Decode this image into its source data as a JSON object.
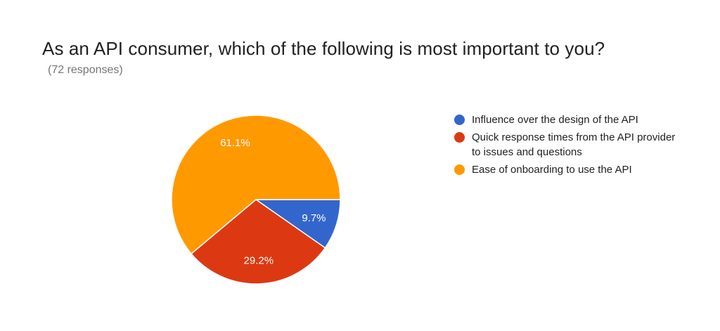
{
  "header": {
    "title": "As an API consumer, which of the following is most important to you?",
    "responses": "(72 responses)"
  },
  "chart_data": {
    "type": "pie",
    "slices": [
      {
        "label": "Influence over the design of the API",
        "value": 9.7,
        "display": "9.7%",
        "color": "#3366cc"
      },
      {
        "label": "Quick response times from the API provider to issues and questions",
        "value": 29.2,
        "display": "29.2%",
        "color": "#dc3912"
      },
      {
        "label": "Ease of onboarding to use the API",
        "value": 61.1,
        "display": "61.1%",
        "color": "#ff9900"
      }
    ],
    "legend_position": "right",
    "start_angle": "3 o'clock, clockwise"
  }
}
